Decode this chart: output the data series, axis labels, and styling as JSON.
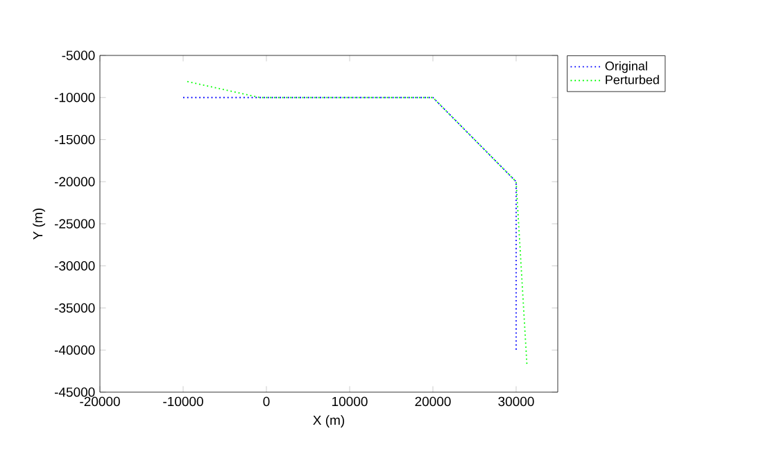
{
  "chart_data": {
    "type": "line",
    "xlabel": "X (m)",
    "ylabel": "Y (m)",
    "series": [
      {
        "name": "Original",
        "color": "#0000ff",
        "x": [
          -10000,
          0,
          20000,
          30000,
          30000
        ],
        "values": [
          -10000,
          -10000,
          -10000,
          -20000,
          -40000
        ]
      },
      {
        "name": "Perturbed",
        "color": "#00ff00",
        "x": [
          -9500,
          -800,
          20000,
          30000,
          31300
        ],
        "values": [
          -8100,
          -10000,
          -10000,
          -20000,
          -41800
        ]
      }
    ],
    "xlim": [
      -20000,
      35000
    ],
    "xticks": [
      -20000,
      -10000,
      0,
      10000,
      20000,
      30000
    ],
    "ylim": [
      -45000,
      -5000
    ],
    "yticks": [
      -45000,
      -40000,
      -35000,
      -30000,
      -25000,
      -20000,
      -15000,
      -10000,
      -5000
    ],
    "grid": false,
    "legend": "top right",
    "marker": "none",
    "line_style": "dotted"
  }
}
